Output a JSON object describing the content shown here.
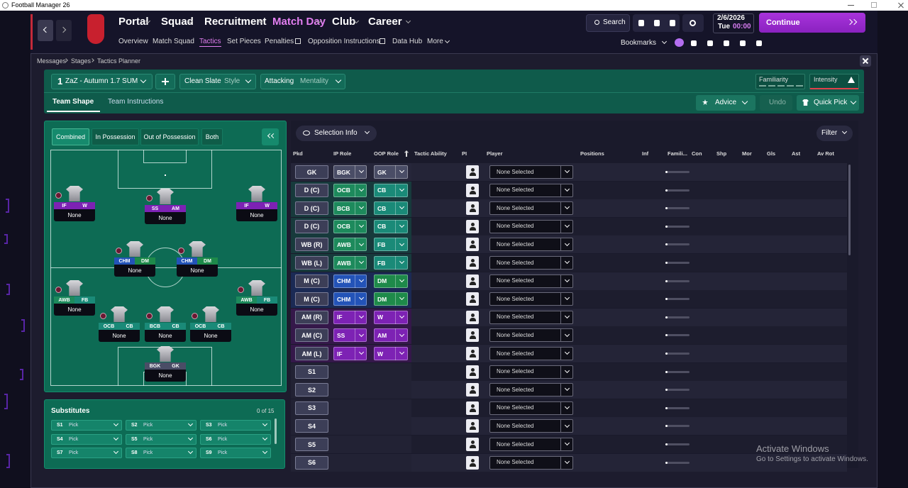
{
  "window": {
    "title": "Football Manager 26"
  },
  "nav": {
    "main": [
      "Portal",
      "Squad",
      "Recruitment",
      "Match Day",
      "Club",
      "Career"
    ],
    "sub": [
      "Overview",
      "Match Squad",
      "Tactics",
      "Set Pieces",
      "Penalties",
      "Opposition Instructions",
      "Data Hub",
      "More"
    ],
    "search": "Search",
    "date": "2/6/2026",
    "day": "Tue",
    "time": "00:00",
    "continue": "Continue",
    "bookmarks": "Bookmarks"
  },
  "breadcrumb": [
    "Messages",
    "Stages",
    "Tactics Planner"
  ],
  "tactic": {
    "slot": "1",
    "name": "ZaZ - Autumn 1.7 SUM",
    "style": "Clean Slate",
    "style_label": "Style",
    "mentality": "Attacking",
    "mentality_label": "Mentality",
    "familiarity": "Familiarity",
    "intensity": "Intensity",
    "tabs": [
      "Team Shape",
      "Team Instructions"
    ],
    "advice": "Advice",
    "undo": "Undo",
    "quick_pick": "Quick Pick"
  },
  "pitch": {
    "modes": [
      "Combined",
      "In Possession",
      "Out of Possession",
      "Both"
    ],
    "players": [
      {
        "ip": "IF",
        "oop": "W",
        "name": "None"
      },
      {
        "ip": "SS",
        "oop": "AM",
        "name": "None"
      },
      {
        "ip": "IF",
        "oop": "W",
        "name": "None"
      },
      {
        "ip": "CHM",
        "oop": "DM",
        "name": "None"
      },
      {
        "ip": "CHM",
        "oop": "DM",
        "name": "None"
      },
      {
        "ip": "AWB",
        "oop": "FB",
        "name": "None"
      },
      {
        "ip": "AWB",
        "oop": "FB",
        "name": "None"
      },
      {
        "ip": "OCB",
        "oop": "CB",
        "name": "None"
      },
      {
        "ip": "BCB",
        "oop": "CB",
        "name": "None"
      },
      {
        "ip": "OCB",
        "oop": "CB",
        "name": "None"
      },
      {
        "ip": "BGK",
        "oop": "GK",
        "name": "None"
      }
    ]
  },
  "substitutes": {
    "title": "Substitutes",
    "count": "0 of 15",
    "slots": [
      {
        "slot": "S1",
        "pick": "Pick"
      },
      {
        "slot": "S2",
        "pick": "Pick"
      },
      {
        "slot": "S3",
        "pick": "Pick"
      },
      {
        "slot": "S4",
        "pick": "Pick"
      },
      {
        "slot": "S5",
        "pick": "Pick"
      },
      {
        "slot": "S6",
        "pick": "Pick"
      },
      {
        "slot": "S7",
        "pick": "Pick"
      },
      {
        "slot": "S8",
        "pick": "Pick"
      },
      {
        "slot": "S9",
        "pick": "Pick"
      }
    ]
  },
  "table": {
    "selection_info": "Selection Info",
    "filter": "Filter",
    "columns": [
      "Pkd",
      "IP Role",
      "OOP Role",
      "Tactic Ability",
      "PI",
      "Player",
      "Positions",
      "Inf",
      "Famili...",
      "Con",
      "Shp",
      "Mor",
      "Gls",
      "Ast",
      "Av Rot"
    ],
    "rows": [
      {
        "pkd": "GK",
        "ip": "BGK",
        "oop": "GK",
        "player": "None Selected"
      },
      {
        "pkd": "D (C)",
        "ip": "OCB",
        "oop": "CB",
        "player": "None Selected"
      },
      {
        "pkd": "D (C)",
        "ip": "BCB",
        "oop": "CB",
        "player": "None Selected"
      },
      {
        "pkd": "D (C)",
        "ip": "OCB",
        "oop": "CB",
        "player": "None Selected"
      },
      {
        "pkd": "WB (R)",
        "ip": "AWB",
        "oop": "FB",
        "player": "None Selected"
      },
      {
        "pkd": "WB (L)",
        "ip": "AWB",
        "oop": "FB",
        "player": "None Selected"
      },
      {
        "pkd": "M (C)",
        "ip": "CHM",
        "oop": "DM",
        "player": "None Selected"
      },
      {
        "pkd": "M (C)",
        "ip": "CHM",
        "oop": "DM",
        "player": "None Selected"
      },
      {
        "pkd": "AM (R)",
        "ip": "IF",
        "oop": "W",
        "player": "None Selected"
      },
      {
        "pkd": "AM (C)",
        "ip": "SS",
        "oop": "AM",
        "player": "None Selected"
      },
      {
        "pkd": "AM (L)",
        "ip": "IF",
        "oop": "W",
        "player": "None Selected"
      },
      {
        "pkd": "S1",
        "ip": null,
        "oop": null,
        "player": "None Selected"
      },
      {
        "pkd": "S2",
        "ip": null,
        "oop": null,
        "player": "None Selected"
      },
      {
        "pkd": "S3",
        "ip": null,
        "oop": null,
        "player": "None Selected"
      },
      {
        "pkd": "S4",
        "ip": null,
        "oop": null,
        "player": "None Selected"
      },
      {
        "pkd": "S5",
        "ip": null,
        "oop": null,
        "player": "None Selected"
      },
      {
        "pkd": "S6",
        "ip": null,
        "oop": null,
        "player": "None Selected"
      }
    ]
  },
  "watermark": {
    "title": "Activate Windows",
    "text": "Go to Settings to activate Windows."
  }
}
